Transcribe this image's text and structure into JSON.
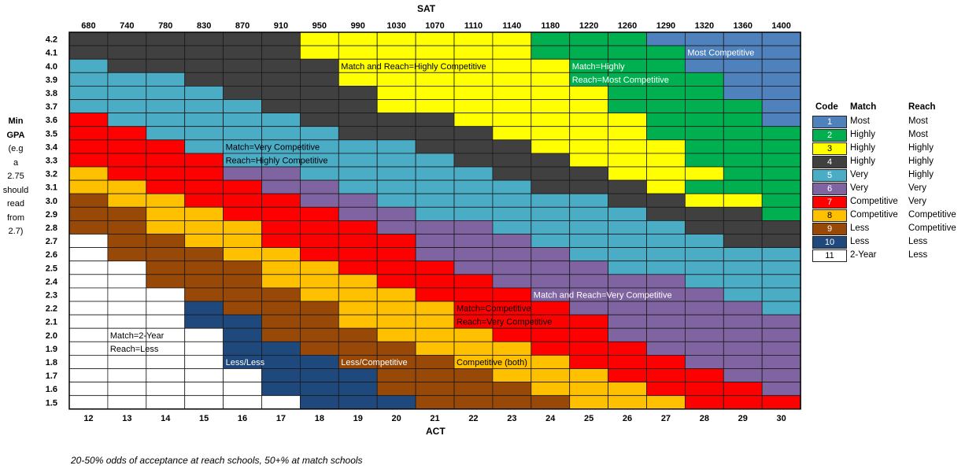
{
  "chart_data": {
    "type": "heatmap",
    "title": "",
    "x_top_label": "SAT",
    "x_bottom_label": "ACT",
    "y_label_lines": [
      "Min",
      "GPA",
      "(e.g",
      "a",
      "2.75",
      "should",
      "read",
      "from",
      "2.7)"
    ],
    "sat_ticks": [
      "680",
      "740",
      "780",
      "830",
      "870",
      "910",
      "950",
      "990",
      "1030",
      "1070",
      "1110",
      "1140",
      "1180",
      "1220",
      "1260",
      "1290",
      "1320",
      "1360",
      "1400"
    ],
    "act_ticks": [
      "12",
      "13",
      "14",
      "15",
      "16",
      "17",
      "18",
      "19",
      "20",
      "21",
      "22",
      "23",
      "24",
      "25",
      "26",
      "27",
      "28",
      "29",
      "30"
    ],
    "gpa_ticks": [
      "4.2",
      "4.1",
      "4.0",
      "3.9",
      "3.8",
      "3.7",
      "3.6",
      "3.5",
      "3.4",
      "3.3",
      "3.2",
      "3.1",
      "3.0",
      "2.9",
      "2.8",
      "2.7",
      "2.6",
      "2.5",
      "2.4",
      "2.3",
      "2.2",
      "2.1",
      "2.0",
      "1.9",
      "1.8",
      "1.7",
      "1.6",
      "1.5"
    ],
    "codes": [
      [
        4,
        4,
        4,
        4,
        4,
        4,
        3,
        3,
        3,
        3,
        3,
        3,
        2,
        2,
        2,
        1,
        1,
        1,
        1
      ],
      [
        4,
        4,
        4,
        4,
        4,
        4,
        3,
        3,
        3,
        3,
        3,
        3,
        2,
        2,
        2,
        2,
        1,
        1,
        1
      ],
      [
        5,
        4,
        4,
        4,
        4,
        4,
        4,
        3,
        3,
        3,
        3,
        3,
        3,
        2,
        2,
        2,
        1,
        1,
        1
      ],
      [
        5,
        5,
        5,
        4,
        4,
        4,
        4,
        3,
        3,
        3,
        3,
        3,
        3,
        2,
        2,
        2,
        2,
        1,
        1
      ],
      [
        5,
        5,
        5,
        5,
        4,
        4,
        4,
        4,
        3,
        3,
        3,
        3,
        3,
        3,
        2,
        2,
        2,
        1,
        1
      ],
      [
        5,
        5,
        5,
        5,
        5,
        4,
        4,
        4,
        3,
        3,
        3,
        3,
        3,
        3,
        2,
        2,
        2,
        2,
        1
      ],
      [
        7,
        5,
        5,
        5,
        5,
        5,
        4,
        4,
        4,
        4,
        3,
        3,
        3,
        3,
        3,
        2,
        2,
        2,
        1
      ],
      [
        7,
        7,
        5,
        5,
        5,
        5,
        5,
        4,
        4,
        4,
        4,
        3,
        3,
        3,
        3,
        2,
        2,
        2,
        2
      ],
      [
        7,
        7,
        7,
        5,
        5,
        5,
        5,
        5,
        5,
        4,
        4,
        4,
        3,
        3,
        3,
        3,
        2,
        2,
        2
      ],
      [
        7,
        7,
        7,
        7,
        5,
        5,
        5,
        5,
        5,
        5,
        4,
        4,
        4,
        3,
        3,
        3,
        2,
        2,
        2
      ],
      [
        8,
        7,
        7,
        7,
        6,
        6,
        5,
        5,
        5,
        5,
        5,
        4,
        4,
        4,
        3,
        3,
        3,
        2,
        2
      ],
      [
        8,
        8,
        7,
        7,
        7,
        6,
        6,
        5,
        5,
        5,
        5,
        5,
        4,
        4,
        4,
        3,
        2,
        2,
        2
      ],
      [
        9,
        8,
        8,
        7,
        7,
        7,
        6,
        6,
        5,
        5,
        5,
        5,
        5,
        5,
        4,
        4,
        3,
        3,
        2
      ],
      [
        9,
        9,
        8,
        8,
        7,
        7,
        7,
        6,
        6,
        5,
        5,
        5,
        5,
        5,
        5,
        4,
        4,
        4,
        2
      ],
      [
        9,
        9,
        8,
        8,
        8,
        7,
        7,
        7,
        6,
        6,
        6,
        5,
        5,
        5,
        5,
        5,
        4,
        4,
        4
      ],
      [
        11,
        9,
        9,
        8,
        8,
        7,
        7,
        7,
        7,
        6,
        6,
        6,
        5,
        5,
        5,
        5,
        5,
        4,
        4
      ],
      [
        11,
        9,
        9,
        9,
        8,
        8,
        7,
        7,
        7,
        6,
        6,
        6,
        6,
        5,
        5,
        5,
        5,
        5,
        5
      ],
      [
        11,
        11,
        9,
        9,
        9,
        8,
        8,
        7,
        7,
        7,
        6,
        6,
        6,
        6,
        5,
        5,
        5,
        5,
        5
      ],
      [
        11,
        11,
        9,
        9,
        9,
        8,
        8,
        8,
        7,
        7,
        7,
        6,
        6,
        6,
        6,
        6,
        5,
        5,
        5
      ],
      [
        11,
        11,
        11,
        9,
        9,
        9,
        8,
        8,
        8,
        7,
        7,
        7,
        6,
        6,
        6,
        6,
        6,
        5,
        5
      ],
      [
        11,
        11,
        11,
        10,
        9,
        9,
        9,
        8,
        8,
        8,
        7,
        7,
        7,
        6,
        6,
        6,
        6,
        6,
        5
      ],
      [
        11,
        11,
        11,
        10,
        10,
        9,
        9,
        8,
        8,
        8,
        7,
        7,
        7,
        7,
        6,
        6,
        6,
        6,
        6
      ],
      [
        11,
        11,
        11,
        11,
        10,
        9,
        9,
        9,
        8,
        8,
        8,
        7,
        7,
        7,
        6,
        6,
        6,
        6,
        6
      ],
      [
        11,
        11,
        11,
        11,
        10,
        10,
        9,
        9,
        9,
        8,
        8,
        8,
        7,
        7,
        7,
        6,
        6,
        6,
        6
      ],
      [
        11,
        11,
        11,
        11,
        10,
        10,
        10,
        9,
        9,
        9,
        8,
        8,
        8,
        7,
        7,
        7,
        6,
        6,
        6
      ],
      [
        11,
        11,
        11,
        11,
        11,
        10,
        10,
        10,
        9,
        9,
        9,
        8,
        8,
        8,
        7,
        7,
        7,
        6,
        6
      ],
      [
        11,
        11,
        11,
        11,
        11,
        10,
        10,
        10,
        9,
        9,
        9,
        9,
        8,
        8,
        8,
        7,
        7,
        7,
        6
      ],
      [
        11,
        11,
        11,
        11,
        11,
        11,
        10,
        10,
        10,
        9,
        9,
        9,
        9,
        8,
        8,
        8,
        7,
        7,
        7
      ]
    ],
    "palette": {
      "1": "#4f81bd",
      "2": "#00b050",
      "3": "#ffff00",
      "4": "#404040",
      "5": "#4bacc6",
      "6": "#8064a2",
      "7": "#ff0000",
      "8": "#ffc000",
      "9": "#984807",
      "10": "#1f497d",
      "11": "#ffffff"
    },
    "annotations": [
      {
        "text": "Match and Reach=Highly Competitive",
        "row": 2,
        "col": 7,
        "color": "#000000"
      },
      {
        "text": "Match=Highly",
        "row": 2,
        "col": 13,
        "color": "#ffffff"
      },
      {
        "text": "Reach=Most Competitive",
        "row": 3,
        "col": 13,
        "color": "#ffffff"
      },
      {
        "text": "Most Competitive",
        "row": 1,
        "col": 16,
        "color": "#ffffff"
      },
      {
        "text": "Match=Very Competitive",
        "row": 8,
        "col": 4,
        "color": "#000000"
      },
      {
        "text": "Reach=Highly Competitive",
        "row": 9,
        "col": 4,
        "color": "#000000"
      },
      {
        "text": "Match and Reach=Very Competitive",
        "row": 19,
        "col": 12,
        "color": "#ffffff"
      },
      {
        "text": "Match=Competitive",
        "row": 20,
        "col": 10,
        "color": "#000000"
      },
      {
        "text": "Reach=Very Competitive",
        "row": 21,
        "col": 10,
        "color": "#000000"
      },
      {
        "text": "Match=2-Year",
        "row": 22,
        "col": 1,
        "color": "#000000"
      },
      {
        "text": "Reach=Less",
        "row": 23,
        "col": 1,
        "color": "#000000"
      },
      {
        "text": "Less/Less",
        "row": 24,
        "col": 4,
        "color": "#ffffff"
      },
      {
        "text": "Less/Competitive",
        "row": 24,
        "col": 7,
        "color": "#ffffff"
      },
      {
        "text": "Competitive (both)",
        "row": 24,
        "col": 10,
        "color": "#000000"
      }
    ]
  },
  "legend": {
    "headers": {
      "code": "Code",
      "match": "Match",
      "reach": "Reach"
    },
    "rows": [
      {
        "code": "1",
        "match": "Most",
        "reach": "Most"
      },
      {
        "code": "2",
        "match": "Highly",
        "reach": "Most"
      },
      {
        "code": "3",
        "match": "Highly",
        "reach": "Highly"
      },
      {
        "code": "4",
        "match": "Highly",
        "reach": "Highly"
      },
      {
        "code": "5",
        "match": "Very",
        "reach": "Highly"
      },
      {
        "code": "6",
        "match": "Very",
        "reach": "Very"
      },
      {
        "code": "7",
        "match": "Competitive",
        "reach": "Very"
      },
      {
        "code": "8",
        "match": "Competitive",
        "reach": "Competitive"
      },
      {
        "code": "9",
        "match": "Less",
        "reach": "Competitive"
      },
      {
        "code": "10",
        "match": "Less",
        "reach": "Less"
      },
      {
        "code": "11",
        "match": "2-Year",
        "reach": "Less"
      }
    ]
  },
  "footnote": "20-50% odds of acceptance at reach schools, 50+% at match schools"
}
